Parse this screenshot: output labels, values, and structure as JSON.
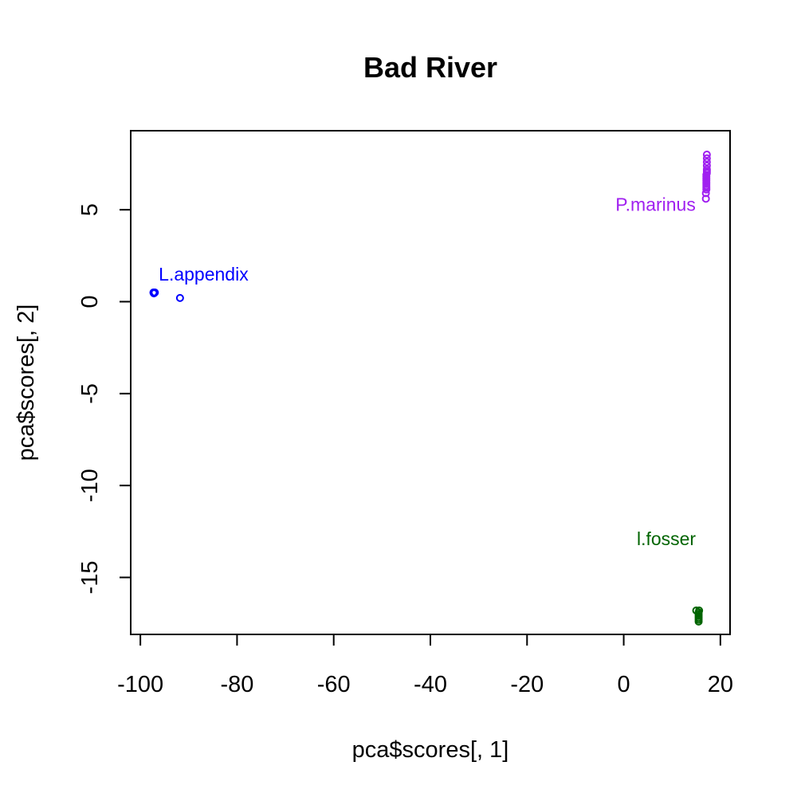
{
  "chart_data": {
    "type": "scatter",
    "title": "Bad River",
    "xlabel": "pca$scores[, 1]",
    "ylabel": "pca$scores[, 2]",
    "xlim": [
      -102,
      22
    ],
    "ylim": [
      -18.1,
      9.3
    ],
    "xticks": [
      -100,
      -80,
      -60,
      -40,
      -20,
      0,
      20
    ],
    "yticks": [
      -15,
      -10,
      -5,
      0,
      5
    ],
    "xtick_labels": [
      "-100",
      "-80",
      "-60",
      "-40",
      "-20",
      "0",
      "20"
    ],
    "ytick_labels": [
      "-15",
      "-10",
      "-5",
      "0",
      "5"
    ],
    "grid": false,
    "legend": "none",
    "marker": "open-circle",
    "series": [
      {
        "color": "#0000ff",
        "points": [
          [
            -97.3,
            0.5
          ],
          [
            -97.0,
            0.5
          ],
          [
            -97.2,
            0.45
          ],
          [
            -91.8,
            0.2
          ]
        ]
      },
      {
        "color": "#a020f0",
        "points": [
          [
            17.2,
            8.0
          ],
          [
            17.2,
            7.8
          ],
          [
            17.2,
            7.6
          ],
          [
            17.2,
            7.4
          ],
          [
            17.2,
            7.2
          ],
          [
            17.2,
            7.1
          ],
          [
            17.2,
            7.0
          ],
          [
            17.1,
            6.9
          ],
          [
            17.1,
            6.8
          ],
          [
            17.1,
            6.7
          ],
          [
            17.1,
            6.6
          ],
          [
            17.1,
            6.5
          ],
          [
            17.1,
            6.4
          ],
          [
            17.1,
            6.3
          ],
          [
            17.1,
            6.2
          ],
          [
            17.1,
            6.1
          ],
          [
            17.0,
            5.9
          ],
          [
            17.0,
            5.6
          ]
        ]
      },
      {
        "color": "#006400",
        "points": [
          [
            15.6,
            -16.8
          ],
          [
            15.0,
            -16.8
          ],
          [
            15.5,
            -16.9
          ],
          [
            15.5,
            -17.0
          ],
          [
            15.5,
            -17.1
          ],
          [
            15.5,
            -17.2
          ],
          [
            15.5,
            -17.3
          ],
          [
            15.5,
            -17.4
          ]
        ]
      }
    ],
    "annotations": [
      {
        "text": "L.appendix",
        "x": -96.2,
        "y": 1.15,
        "color": "#0000ff"
      },
      {
        "text": "P.marinus",
        "x": -1.7,
        "y": 4.95,
        "color": "#a020f0"
      },
      {
        "text": "l.fosser",
        "x": 2.7,
        "y": -13.25,
        "color": "#006400"
      }
    ]
  }
}
